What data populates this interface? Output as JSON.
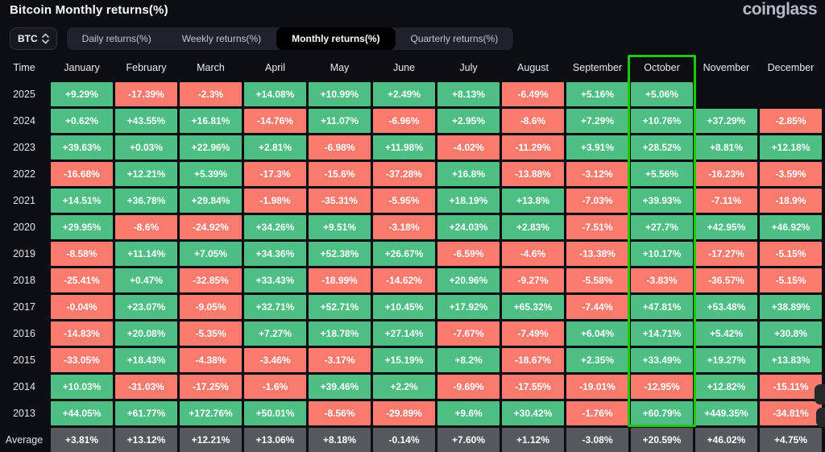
{
  "header": {
    "title": "Bitcoin Monthly returns(%)",
    "logo": "coinglass"
  },
  "controls": {
    "coin_selector": {
      "label": "BTC"
    },
    "tabs": [
      {
        "label": "Daily returns(%)",
        "active": false
      },
      {
        "label": "Weekly returns(%)",
        "active": false
      },
      {
        "label": "Monthly returns(%)",
        "active": true
      },
      {
        "label": "Quarterly returns(%)",
        "active": false
      }
    ]
  },
  "table": {
    "columns": [
      "Time",
      "January",
      "February",
      "March",
      "April",
      "May",
      "June",
      "July",
      "August",
      "September",
      "October",
      "November",
      "December"
    ],
    "highlighted_column": "October",
    "rows": [
      {
        "year": "2025",
        "values": [
          "+9.29%",
          "-17.39%",
          "-2.3%",
          "+14.08%",
          "+10.99%",
          "+2.49%",
          "+8.13%",
          "-6.49%",
          "+5.16%",
          "+5.06%",
          "",
          ""
        ]
      },
      {
        "year": "2024",
        "values": [
          "+0.62%",
          "+43.55%",
          "+16.81%",
          "-14.76%",
          "+11.07%",
          "-6.96%",
          "+2.95%",
          "-8.6%",
          "+7.29%",
          "+10.76%",
          "+37.29%",
          "-2.85%"
        ]
      },
      {
        "year": "2023",
        "values": [
          "+39.63%",
          "+0.03%",
          "+22.96%",
          "+2.81%",
          "-6.98%",
          "+11.98%",
          "-4.02%",
          "-11.29%",
          "+3.91%",
          "+28.52%",
          "+8.81%",
          "+12.18%"
        ]
      },
      {
        "year": "2022",
        "values": [
          "-16.68%",
          "+12.21%",
          "+5.39%",
          "-17.3%",
          "-15.6%",
          "-37.28%",
          "+16.8%",
          "-13.88%",
          "-3.12%",
          "+5.56%",
          "-16.23%",
          "-3.59%"
        ]
      },
      {
        "year": "2021",
        "values": [
          "+14.51%",
          "+36.78%",
          "+29.84%",
          "-1.98%",
          "-35.31%",
          "-5.95%",
          "+18.19%",
          "+13.8%",
          "-7.03%",
          "+39.93%",
          "-7.11%",
          "-18.9%"
        ]
      },
      {
        "year": "2020",
        "values": [
          "+29.95%",
          "-8.6%",
          "-24.92%",
          "+34.26%",
          "+9.51%",
          "-3.18%",
          "+24.03%",
          "+2.83%",
          "-7.51%",
          "+27.7%",
          "+42.95%",
          "+46.92%"
        ]
      },
      {
        "year": "2019",
        "values": [
          "-8.58%",
          "+11.14%",
          "+7.05%",
          "+34.36%",
          "+52.38%",
          "+26.67%",
          "-6.59%",
          "-4.6%",
          "-13.38%",
          "+10.17%",
          "-17.27%",
          "-5.15%"
        ]
      },
      {
        "year": "2018",
        "values": [
          "-25.41%",
          "+0.47%",
          "-32.85%",
          "+33.43%",
          "-18.99%",
          "-14.62%",
          "+20.96%",
          "-9.27%",
          "-5.58%",
          "-3.83%",
          "-36.57%",
          "-5.15%"
        ]
      },
      {
        "year": "2017",
        "values": [
          "-0.04%",
          "+23.07%",
          "-9.05%",
          "+32.71%",
          "+52.71%",
          "+10.45%",
          "+17.92%",
          "+65.32%",
          "-7.44%",
          "+47.81%",
          "+53.48%",
          "+38.89%"
        ]
      },
      {
        "year": "2016",
        "values": [
          "-14.83%",
          "+20.08%",
          "-5.35%",
          "+7.27%",
          "+18.78%",
          "+27.14%",
          "-7.67%",
          "-7.49%",
          "+6.04%",
          "+14.71%",
          "+5.42%",
          "+30.8%"
        ]
      },
      {
        "year": "2015",
        "values": [
          "-33.05%",
          "+18.43%",
          "-4.38%",
          "-3.46%",
          "-3.17%",
          "+15.19%",
          "+8.2%",
          "-18.67%",
          "+2.35%",
          "+33.49%",
          "+19.27%",
          "+13.83%"
        ]
      },
      {
        "year": "2014",
        "values": [
          "+10.03%",
          "-31.03%",
          "-17.25%",
          "-1.6%",
          "+39.46%",
          "+2.2%",
          "-9.69%",
          "-17.55%",
          "-19.01%",
          "-12.95%",
          "+12.82%",
          "-15.11%"
        ]
      },
      {
        "year": "2013",
        "values": [
          "+44.05%",
          "+61.77%",
          "+172.76%",
          "+50.01%",
          "-8.56%",
          "-29.89%",
          "+9.6%",
          "+30.42%",
          "-1.76%",
          "+60.79%",
          "+449.35%",
          "-34.81%"
        ]
      },
      {
        "year": "Average",
        "is_average": true,
        "values": [
          "+3.81%",
          "+13.12%",
          "+12.21%",
          "+13.06%",
          "+8.18%",
          "-0.14%",
          "+7.60%",
          "+1.12%",
          "-3.08%",
          "+20.59%",
          "+46.02%",
          "+4.75%"
        ]
      }
    ]
  },
  "colors": {
    "positive_cell": "#4ebe83",
    "negative_cell": "#f87b6e",
    "average_cell": "#56585e",
    "highlight_border": "#1dc90b",
    "active_tab_bg": "#000000",
    "background": "#0d0e13"
  }
}
